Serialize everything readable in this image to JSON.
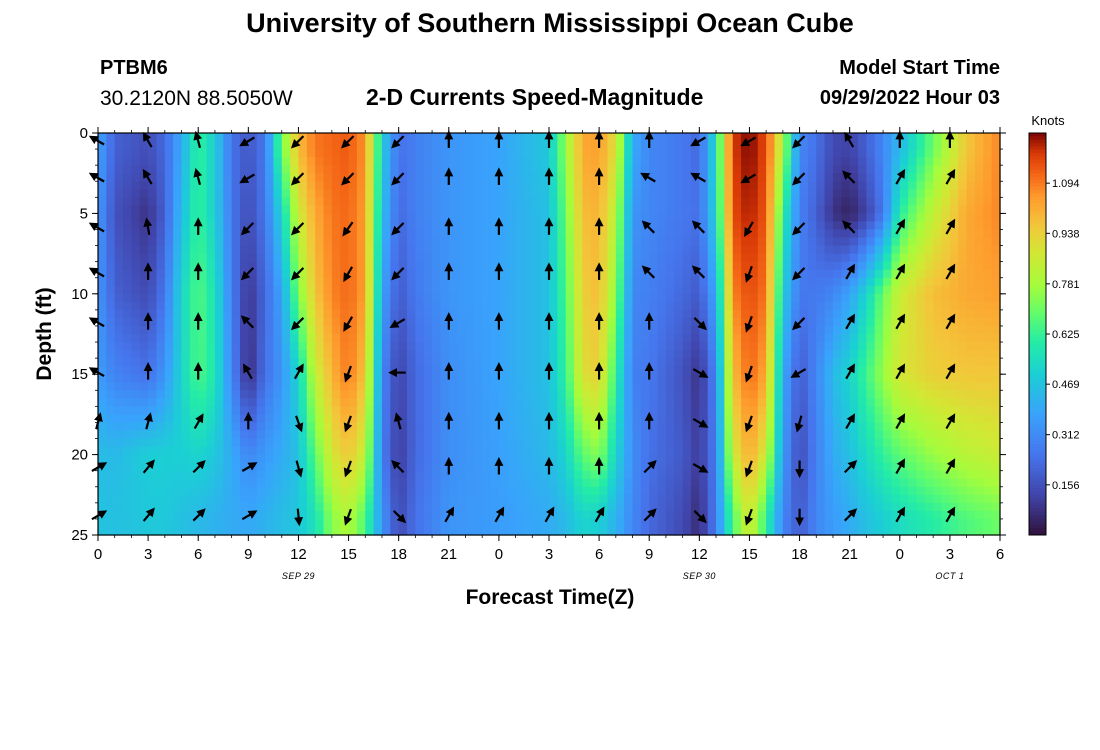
{
  "header": {
    "title_top": "University of Southern Mississippi Ocean Cube",
    "title_bottom": "University of Southern Mississippi Ocean Cube",
    "station": "PTBM6",
    "lat_lon": "30.2120N  88.5050W",
    "subtitle": "2-D Currents Speed-Magnitude",
    "model_start_label": "Model Start Time",
    "model_start_value": "09/29/2022 Hour 03"
  },
  "chart_data": {
    "type": "heatmap",
    "title": "2-D Currents Speed-Magnitude",
    "xlabel": "Forecast Time(Z)",
    "ylabel": "Depth (ft)",
    "x_tick_labels": [
      "0",
      "3",
      "6",
      "9",
      "12",
      "15",
      "18",
      "21",
      "0",
      "3",
      "6",
      "9",
      "12",
      "15",
      "18",
      "21",
      "0",
      "3",
      "6"
    ],
    "x_range_hours": [
      0,
      54
    ],
    "date_labels": [
      {
        "text": "SEP 29",
        "hour": 12
      },
      {
        "text": "SEP 30",
        "hour": 36
      },
      {
        "text": "OCT 1",
        "hour": 51
      }
    ],
    "y_ticks": [
      0,
      5,
      10,
      15,
      20,
      25
    ],
    "ylim": [
      0,
      25
    ],
    "y_inverted": true,
    "colorbar": {
      "label": "Knots",
      "ticks": [
        "1.094",
        "0.938",
        "0.781",
        "0.625",
        "0.469",
        "0.312",
        "0.156"
      ],
      "min": 0.0,
      "max": 1.25
    },
    "speed_depths_ft": [
      1,
      5,
      10,
      15,
      20,
      24
    ],
    "speed_columns": [
      {
        "hour": 0,
        "knots": [
          0.38,
          0.35,
          0.34,
          0.36,
          0.45,
          0.47
        ]
      },
      {
        "hour": 1,
        "knots": [
          0.2,
          0.16,
          0.2,
          0.29,
          0.44,
          0.46
        ]
      },
      {
        "hour": 3,
        "knots": [
          0.15,
          0.08,
          0.14,
          0.24,
          0.5,
          0.48
        ]
      },
      {
        "hour": 4,
        "knots": [
          0.22,
          0.2,
          0.26,
          0.34,
          0.5,
          0.48
        ]
      },
      {
        "hour": 5,
        "knots": [
          0.4,
          0.45,
          0.52,
          0.52,
          0.5,
          0.46
        ]
      },
      {
        "hour": 6,
        "knots": [
          0.63,
          0.63,
          0.67,
          0.66,
          0.52,
          0.44
        ]
      },
      {
        "hour": 7,
        "knots": [
          0.5,
          0.5,
          0.56,
          0.58,
          0.48,
          0.42
        ]
      },
      {
        "hour": 8,
        "knots": [
          0.25,
          0.26,
          0.28,
          0.3,
          0.4,
          0.4
        ]
      },
      {
        "hour": 9,
        "knots": [
          0.17,
          0.14,
          0.08,
          0.06,
          0.3,
          0.39
        ]
      },
      {
        "hour": 10,
        "knots": [
          0.26,
          0.26,
          0.22,
          0.24,
          0.35,
          0.42
        ]
      },
      {
        "hour": 11,
        "knots": [
          0.7,
          0.52,
          0.38,
          0.34,
          0.4,
          0.45
        ]
      },
      {
        "hour": 12,
        "knots": [
          0.98,
          0.86,
          0.72,
          0.52,
          0.46,
          0.48
        ]
      },
      {
        "hour": 13,
        "knots": [
          1.1,
          1.02,
          0.96,
          0.84,
          0.68,
          0.56
        ]
      },
      {
        "hour": 14,
        "knots": [
          1.12,
          1.1,
          1.08,
          1.0,
          0.88,
          0.74
        ]
      },
      {
        "hour": 15,
        "knots": [
          1.14,
          1.12,
          1.12,
          1.1,
          0.96,
          0.8
        ]
      },
      {
        "hour": 16,
        "knots": [
          1.06,
          1.04,
          1.04,
          0.96,
          0.84,
          0.66
        ]
      },
      {
        "hour": 17,
        "knots": [
          0.5,
          0.46,
          0.38,
          0.3,
          0.28,
          0.34
        ]
      },
      {
        "hour": 18,
        "knots": [
          0.24,
          0.22,
          0.18,
          0.12,
          0.1,
          0.14
        ]
      },
      {
        "hour": 19,
        "knots": [
          0.28,
          0.28,
          0.26,
          0.22,
          0.22,
          0.24
        ]
      },
      {
        "hour": 21,
        "knots": [
          0.34,
          0.34,
          0.34,
          0.32,
          0.32,
          0.34
        ]
      },
      {
        "hour": 24,
        "knots": [
          0.38,
          0.38,
          0.38,
          0.38,
          0.37,
          0.36
        ]
      },
      {
        "hour": 27,
        "knots": [
          0.48,
          0.46,
          0.46,
          0.46,
          0.44,
          0.4
        ]
      },
      {
        "hour": 28,
        "knots": [
          0.76,
          0.7,
          0.66,
          0.62,
          0.52,
          0.44
        ]
      },
      {
        "hour": 29,
        "knots": [
          1.02,
          0.98,
          0.94,
          0.9,
          0.68,
          0.52
        ]
      },
      {
        "hour": 30,
        "knots": [
          1.04,
          1.0,
          0.98,
          0.94,
          0.74,
          0.5
        ]
      },
      {
        "hour": 31,
        "knots": [
          0.9,
          0.82,
          0.74,
          0.62,
          0.52,
          0.42
        ]
      },
      {
        "hour": 32,
        "knots": [
          0.4,
          0.34,
          0.3,
          0.28,
          0.32,
          0.3
        ]
      },
      {
        "hour": 33,
        "knots": [
          0.3,
          0.3,
          0.28,
          0.26,
          0.24,
          0.22
        ]
      },
      {
        "hour": 35,
        "knots": [
          0.26,
          0.26,
          0.22,
          0.16,
          0.18,
          0.14
        ]
      },
      {
        "hour": 36,
        "knots": [
          0.22,
          0.24,
          0.18,
          0.08,
          0.1,
          0.06
        ]
      },
      {
        "hour": 37,
        "knots": [
          0.55,
          0.52,
          0.4,
          0.3,
          0.28,
          0.28
        ]
      },
      {
        "hour": 38,
        "knots": [
          1.18,
          1.16,
          1.08,
          0.98,
          0.86,
          0.66
        ]
      },
      {
        "hour": 39,
        "knots": [
          1.25,
          1.22,
          1.16,
          1.12,
          1.02,
          0.88
        ]
      },
      {
        "hour": 40,
        "knots": [
          1.16,
          1.14,
          1.1,
          1.02,
          0.86,
          0.62
        ]
      },
      {
        "hour": 41,
        "knots": [
          0.8,
          0.62,
          0.5,
          0.4,
          0.36,
          0.3
        ]
      },
      {
        "hour": 42,
        "knots": [
          0.3,
          0.28,
          0.26,
          0.18,
          0.14,
          0.18
        ]
      },
      {
        "hour": 43,
        "knots": [
          0.24,
          0.2,
          0.26,
          0.3,
          0.28,
          0.3
        ]
      },
      {
        "hour": 44,
        "knots": [
          0.14,
          0.08,
          0.3,
          0.44,
          0.4,
          0.36
        ]
      },
      {
        "hour": 45,
        "knots": [
          0.12,
          0.04,
          0.38,
          0.52,
          0.46,
          0.4
        ]
      },
      {
        "hour": 46,
        "knots": [
          0.2,
          0.12,
          0.52,
          0.64,
          0.54,
          0.46
        ]
      },
      {
        "hour": 47,
        "knots": [
          0.3,
          0.26,
          0.7,
          0.76,
          0.62,
          0.5
        ]
      },
      {
        "hour": 48,
        "knots": [
          0.44,
          0.6,
          0.86,
          0.88,
          0.68,
          0.54
        ]
      },
      {
        "hour": 50,
        "knots": [
          0.7,
          0.84,
          0.98,
          0.94,
          0.76,
          0.6
        ]
      },
      {
        "hour": 52,
        "knots": [
          0.96,
          1.02,
          1.02,
          0.96,
          0.82,
          0.66
        ]
      },
      {
        "hour": 54,
        "knots": [
          1.08,
          1.08,
          1.04,
          0.96,
          0.86,
          0.7
        ]
      }
    ],
    "vector_depths_ft": [
      0.5,
      2.8,
      5.9,
      8.7,
      11.8,
      14.9,
      18.0,
      20.8,
      23.8
    ],
    "vector_columns": [
      {
        "hour": 0,
        "dirs_deg": [
          300,
          300,
          300,
          300,
          300,
          300,
          15,
          60,
          60
        ]
      },
      {
        "hour": 3,
        "dirs_deg": [
          330,
          330,
          350,
          0,
          0,
          0,
          15,
          40,
          40
        ]
      },
      {
        "hour": 6,
        "dirs_deg": [
          345,
          345,
          0,
          0,
          0,
          0,
          30,
          45,
          45
        ]
      },
      {
        "hour": 9,
        "dirs_deg": [
          240,
          240,
          225,
          225,
          315,
          330,
          0,
          60,
          60
        ]
      },
      {
        "hour": 12,
        "dirs_deg": [
          225,
          225,
          225,
          225,
          225,
          30,
          160,
          165,
          175
        ]
      },
      {
        "hour": 15,
        "dirs_deg": [
          225,
          225,
          215,
          210,
          210,
          200,
          200,
          200,
          200
        ]
      },
      {
        "hour": 18,
        "dirs_deg": [
          225,
          225,
          225,
          225,
          240,
          270,
          345,
          315,
          135
        ]
      },
      {
        "hour": 21,
        "dirs_deg": [
          0,
          0,
          0,
          0,
          0,
          0,
          0,
          0,
          30
        ]
      },
      {
        "hour": 24,
        "dirs_deg": [
          0,
          0,
          0,
          0,
          0,
          0,
          0,
          0,
          30
        ]
      },
      {
        "hour": 27,
        "dirs_deg": [
          0,
          0,
          0,
          0,
          0,
          0,
          0,
          0,
          30
        ]
      },
      {
        "hour": 30,
        "dirs_deg": [
          0,
          0,
          0,
          0,
          0,
          0,
          0,
          0,
          30
        ]
      },
      {
        "hour": 33,
        "dirs_deg": [
          0,
          300,
          315,
          315,
          0,
          0,
          0,
          45,
          45
        ]
      },
      {
        "hour": 36,
        "dirs_deg": [
          240,
          300,
          315,
          315,
          135,
          120,
          120,
          120,
          135
        ]
      },
      {
        "hour": 39,
        "dirs_deg": [
          240,
          240,
          210,
          200,
          200,
          200,
          200,
          200,
          200
        ]
      },
      {
        "hour": 42,
        "dirs_deg": [
          225,
          225,
          225,
          225,
          225,
          240,
          195,
          180,
          180
        ]
      },
      {
        "hour": 45,
        "dirs_deg": [
          330,
          315,
          315,
          30,
          30,
          30,
          30,
          45,
          45
        ]
      },
      {
        "hour": 48,
        "dirs_deg": [
          0,
          30,
          30,
          30,
          30,
          30,
          30,
          30,
          30
        ]
      },
      {
        "hour": 51,
        "dirs_deg": [
          0,
          30,
          30,
          30,
          30,
          30,
          30,
          30,
          30
        ]
      }
    ]
  }
}
